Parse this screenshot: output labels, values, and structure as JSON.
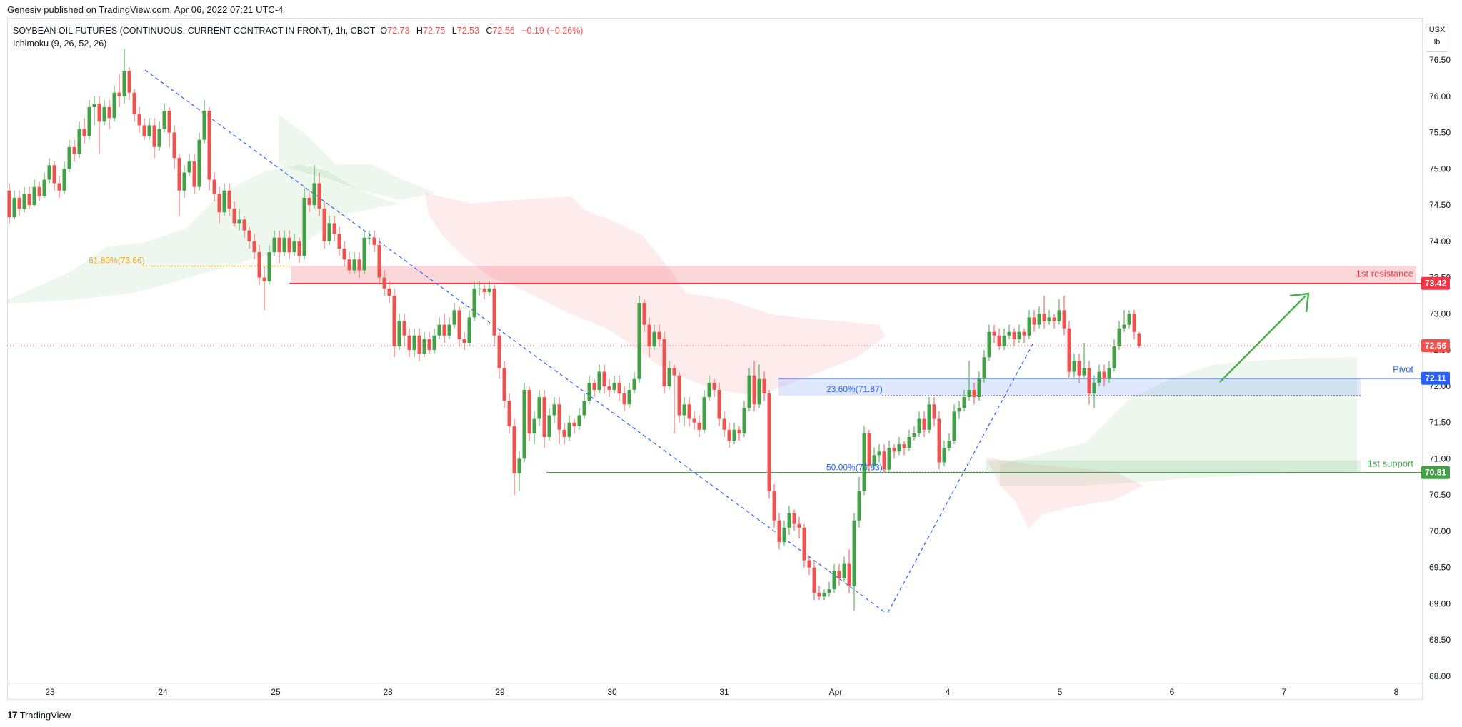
{
  "header": {
    "publisher_line": "Genesiv published on TradingView.com, Apr 06, 2022 07:21 UTC-4"
  },
  "legend": {
    "symbol_line": "SOYBEAN OIL FUTURES (CONTINUOUS: CURRENT CONTRACT IN FRONT), 1h, CBOT",
    "o_label": "O",
    "o_value": "72.73",
    "h_label": "H",
    "h_value": "72.75",
    "l_label": "L",
    "l_value": "72.53",
    "c_label": "C",
    "c_value": "72.56",
    "change": "−0.19 (−0.26%)",
    "indicator": "Ichimoku (9, 26, 52, 26)"
  },
  "unit": {
    "line1": "USX",
    "line2": "lb"
  },
  "footer": {
    "brand": "TradingView"
  },
  "colors": {
    "up": "#26a69a",
    "up_candle": "#43a047",
    "down": "#ef5350",
    "resistance": "#f23645",
    "pivot": "#2962ff",
    "support": "#43a047",
    "fib": "#2962ff",
    "fib618": "#f5a623"
  },
  "chart_data": {
    "type": "candlestick",
    "title": "",
    "ylim": [
      67.8,
      76.9
    ],
    "y_ticks": [
      "76.50",
      "76.00",
      "75.50",
      "75.00",
      "74.50",
      "74.00",
      "73.50",
      "73.00",
      "72.50",
      "72.00",
      "71.50",
      "71.00",
      "70.50",
      "70.00",
      "69.50",
      "69.00",
      "68.50",
      "68.00"
    ],
    "x_ticks": [
      "23",
      "24",
      "25",
      "28",
      "29",
      "30",
      "31",
      "Apr",
      "4",
      "5",
      "6",
      "7",
      "8"
    ],
    "levels": [
      {
        "name": "1st resistance",
        "value": 73.42,
        "label": "73.42",
        "color": "#f23645"
      },
      {
        "name": "Pivot",
        "value": 72.11,
        "label": "72.11",
        "color": "#2962ff"
      },
      {
        "name": "1st support",
        "value": 70.81,
        "label": "70.81",
        "color": "#43a047"
      }
    ],
    "last_price": {
      "value": 72.56,
      "label": "72.56"
    },
    "fib_labels": [
      {
        "text": "61.80%(73.66)",
        "value": 73.66
      },
      {
        "text": "23.60%(71.87)",
        "value": 71.87
      },
      {
        "text": "50.00%(70.83)",
        "value": 70.83
      }
    ],
    "candles": [
      [
        74.7,
        74.33,
        74.8,
        74.25
      ],
      [
        74.33,
        74.6,
        74.7,
        74.3
      ],
      [
        74.6,
        74.45,
        74.7,
        74.35
      ],
      [
        74.45,
        74.65,
        74.75,
        74.4
      ],
      [
        74.65,
        74.5,
        74.75,
        74.45
      ],
      [
        74.5,
        74.75,
        74.85,
        74.48
      ],
      [
        74.75,
        74.62,
        74.82,
        74.55
      ],
      [
        74.62,
        74.85,
        74.95,
        74.6
      ],
      [
        74.85,
        75.05,
        75.15,
        74.8
      ],
      [
        75.05,
        74.8,
        75.1,
        74.7
      ],
      [
        74.8,
        74.7,
        74.9,
        74.6
      ],
      [
        74.7,
        75.0,
        75.1,
        74.65
      ],
      [
        75.0,
        75.3,
        75.4,
        74.95
      ],
      [
        75.3,
        75.2,
        75.4,
        75.1
      ],
      [
        75.2,
        75.55,
        75.65,
        75.15
      ],
      [
        75.55,
        75.45,
        75.7,
        75.35
      ],
      [
        75.45,
        75.85,
        75.95,
        75.4
      ],
      [
        75.85,
        75.9,
        76.0,
        75.6
      ],
      [
        75.9,
        75.65,
        76.0,
        75.2
      ],
      [
        75.65,
        75.85,
        75.95,
        75.6
      ],
      [
        75.85,
        75.7,
        75.95,
        75.55
      ],
      [
        75.7,
        76.05,
        76.15,
        75.65
      ],
      [
        76.05,
        76.0,
        76.3,
        75.85
      ],
      [
        76.0,
        76.35,
        76.65,
        75.9
      ],
      [
        76.35,
        76.05,
        76.4,
        75.95
      ],
      [
        76.05,
        75.75,
        76.1,
        75.65
      ],
      [
        75.75,
        75.6,
        75.85,
        75.5
      ],
      [
        75.6,
        75.45,
        75.7,
        75.4
      ],
      [
        75.45,
        75.6,
        75.7,
        75.4
      ],
      [
        75.6,
        75.3,
        75.7,
        75.15
      ],
      [
        75.3,
        75.55,
        75.65,
        75.25
      ],
      [
        75.55,
        75.8,
        75.9,
        75.5
      ],
      [
        75.8,
        75.5,
        75.85,
        75.3
      ],
      [
        75.5,
        75.15,
        75.6,
        75.0
      ],
      [
        75.15,
        74.7,
        75.2,
        74.35
      ],
      [
        74.7,
        74.95,
        75.05,
        74.6
      ],
      [
        74.95,
        75.1,
        75.2,
        74.9
      ],
      [
        75.1,
        74.75,
        75.2,
        74.65
      ],
      [
        74.75,
        75.4,
        75.5,
        74.7
      ],
      [
        75.4,
        75.8,
        75.95,
        75.35
      ],
      [
        75.8,
        74.85,
        75.85,
        74.7
      ],
      [
        74.85,
        74.65,
        74.95,
        74.55
      ],
      [
        74.65,
        74.4,
        74.75,
        74.25
      ],
      [
        74.4,
        74.7,
        74.8,
        74.35
      ],
      [
        74.7,
        74.45,
        74.8,
        74.35
      ],
      [
        74.45,
        74.25,
        74.55,
        74.2
      ],
      [
        74.25,
        74.3,
        74.45,
        74.15
      ],
      [
        74.3,
        74.15,
        74.35,
        74.05
      ],
      [
        74.15,
        74.0,
        74.2,
        73.9
      ],
      [
        74.0,
        73.85,
        74.1,
        73.75
      ],
      [
        73.85,
        73.5,
        73.95,
        73.4
      ],
      [
        73.5,
        73.45,
        73.65,
        73.05
      ],
      [
        73.45,
        73.85,
        73.95,
        73.4
      ],
      [
        73.85,
        74.05,
        74.15,
        73.8
      ],
      [
        74.05,
        73.85,
        74.15,
        73.7
      ],
      [
        73.85,
        74.05,
        74.15,
        73.8
      ],
      [
        74.05,
        73.85,
        74.15,
        73.75
      ],
      [
        73.85,
        74.0,
        74.1,
        73.8
      ],
      [
        74.0,
        73.8,
        74.05,
        73.7
      ],
      [
        73.8,
        74.6,
        74.75,
        73.75
      ],
      [
        74.6,
        74.5,
        74.7,
        74.4
      ],
      [
        74.5,
        74.8,
        75.05,
        74.45
      ],
      [
        74.8,
        74.45,
        74.95,
        74.35
      ],
      [
        74.45,
        74.0,
        74.55,
        73.9
      ],
      [
        74.0,
        74.25,
        74.35,
        73.95
      ],
      [
        74.25,
        74.1,
        74.35,
        74.0
      ],
      [
        74.1,
        73.9,
        74.2,
        73.8
      ],
      [
        73.9,
        73.75,
        74.0,
        73.65
      ],
      [
        73.75,
        73.6,
        73.85,
        73.55
      ],
      [
        73.6,
        73.75,
        73.85,
        73.55
      ],
      [
        73.75,
        73.6,
        73.85,
        73.5
      ],
      [
        73.6,
        74.05,
        74.15,
        73.55
      ],
      [
        74.05,
        74.05,
        74.15,
        73.95
      ],
      [
        74.05,
        73.95,
        74.15,
        73.85
      ],
      [
        73.95,
        73.5,
        74.05,
        73.4
      ],
      [
        73.5,
        73.35,
        73.6,
        73.25
      ],
      [
        73.35,
        73.25,
        73.45,
        73.15
      ],
      [
        73.25,
        72.55,
        73.35,
        72.4
      ],
      [
        72.55,
        72.9,
        73.0,
        72.5
      ],
      [
        72.9,
        72.7,
        73.0,
        72.55
      ],
      [
        72.7,
        72.5,
        72.8,
        72.4
      ],
      [
        72.5,
        72.7,
        72.8,
        72.4
      ],
      [
        72.7,
        72.45,
        72.8,
        72.35
      ],
      [
        72.45,
        72.65,
        72.75,
        72.4
      ],
      [
        72.65,
        72.5,
        72.75,
        72.45
      ],
      [
        72.5,
        72.7,
        72.8,
        72.45
      ],
      [
        72.7,
        72.85,
        72.95,
        72.65
      ],
      [
        72.85,
        72.7,
        73.0,
        72.6
      ],
      [
        72.7,
        72.85,
        72.95,
        72.65
      ],
      [
        72.85,
        73.05,
        73.15,
        72.8
      ],
      [
        73.05,
        72.65,
        73.1,
        72.55
      ],
      [
        72.65,
        72.6,
        72.75,
        72.5
      ],
      [
        72.6,
        72.95,
        73.05,
        72.55
      ],
      [
        72.95,
        73.35,
        73.45,
        72.9
      ],
      [
        73.35,
        73.35,
        73.45,
        73.25
      ],
      [
        73.35,
        73.3,
        73.4,
        73.2
      ],
      [
        73.3,
        73.35,
        73.45,
        73.25
      ],
      [
        73.35,
        72.7,
        73.4,
        72.55
      ],
      [
        72.7,
        72.25,
        72.75,
        72.1
      ],
      [
        72.25,
        71.8,
        72.35,
        71.7
      ],
      [
        71.8,
        71.45,
        71.9,
        71.35
      ],
      [
        71.45,
        70.8,
        71.55,
        70.5
      ],
      [
        70.8,
        71.0,
        71.1,
        70.55
      ],
      [
        71.0,
        71.95,
        72.05,
        70.95
      ],
      [
        71.95,
        71.35,
        72.0,
        71.25
      ],
      [
        71.35,
        71.55,
        71.65,
        71.2
      ],
      [
        71.55,
        71.85,
        71.95,
        71.45
      ],
      [
        71.85,
        71.3,
        71.95,
        71.15
      ],
      [
        71.3,
        71.6,
        71.7,
        71.25
      ],
      [
        71.6,
        71.75,
        71.85,
        71.5
      ],
      [
        71.75,
        71.4,
        71.85,
        71.2
      ],
      [
        71.4,
        71.3,
        71.5,
        71.2
      ],
      [
        71.3,
        71.5,
        71.6,
        71.25
      ],
      [
        71.5,
        71.45,
        71.55,
        71.35
      ],
      [
        71.45,
        71.6,
        71.7,
        71.4
      ],
      [
        71.6,
        71.8,
        71.9,
        71.55
      ],
      [
        71.8,
        72.05,
        72.15,
        71.75
      ],
      [
        72.05,
        71.95,
        72.1,
        71.85
      ],
      [
        71.95,
        72.2,
        72.3,
        71.9
      ],
      [
        72.2,
        72.0,
        72.3,
        71.9
      ],
      [
        72.0,
        71.95,
        72.1,
        71.85
      ],
      [
        71.95,
        72.05,
        72.15,
        71.9
      ],
      [
        72.05,
        71.9,
        72.15,
        71.8
      ],
      [
        71.9,
        71.75,
        72.0,
        71.65
      ],
      [
        71.75,
        71.95,
        72.05,
        71.7
      ],
      [
        71.95,
        72.1,
        72.2,
        71.9
      ],
      [
        72.1,
        73.15,
        73.25,
        72.05
      ],
      [
        73.15,
        72.85,
        73.2,
        72.75
      ],
      [
        72.85,
        72.55,
        72.95,
        72.4
      ],
      [
        72.55,
        72.75,
        72.85,
        72.5
      ],
      [
        72.75,
        72.65,
        72.85,
        72.55
      ],
      [
        72.65,
        72.0,
        72.75,
        71.9
      ],
      [
        72.0,
        72.25,
        72.35,
        71.95
      ],
      [
        72.25,
        72.15,
        72.3,
        71.35
      ],
      [
        72.15,
        71.6,
        72.2,
        71.5
      ],
      [
        71.6,
        71.75,
        71.85,
        71.45
      ],
      [
        71.75,
        71.55,
        71.85,
        71.45
      ],
      [
        71.55,
        71.5,
        71.65,
        71.4
      ],
      [
        71.5,
        71.4,
        71.6,
        71.3
      ],
      [
        71.4,
        71.85,
        71.95,
        71.35
      ],
      [
        71.85,
        72.05,
        72.15,
        71.8
      ],
      [
        72.05,
        71.95,
        72.1,
        71.85
      ],
      [
        71.95,
        71.55,
        72.05,
        71.45
      ],
      [
        71.55,
        71.4,
        71.65,
        71.3
      ],
      [
        71.4,
        71.25,
        71.5,
        71.15
      ],
      [
        71.25,
        71.4,
        71.5,
        71.2
      ],
      [
        71.4,
        71.35,
        71.45,
        71.25
      ],
      [
        71.35,
        71.7,
        71.8,
        71.3
      ],
      [
        71.7,
        72.15,
        72.25,
        71.65
      ],
      [
        72.15,
        71.75,
        72.35,
        71.65
      ],
      [
        71.75,
        72.1,
        72.3,
        71.7
      ],
      [
        72.1,
        71.9,
        72.2,
        71.8
      ],
      [
        71.9,
        70.55,
        71.95,
        70.45
      ],
      [
        70.55,
        70.15,
        70.65,
        70.05
      ],
      [
        70.15,
        69.85,
        70.25,
        69.75
      ],
      [
        69.85,
        70.05,
        70.15,
        69.8
      ],
      [
        70.05,
        70.25,
        70.35,
        69.95
      ],
      [
        70.25,
        70.1,
        70.3,
        70.0
      ],
      [
        70.1,
        70.05,
        70.2,
        69.9
      ],
      [
        70.05,
        69.6,
        70.1,
        69.5
      ],
      [
        69.6,
        69.5,
        69.65,
        69.4
      ],
      [
        69.5,
        69.15,
        69.6,
        69.05
      ],
      [
        69.15,
        69.1,
        69.25,
        69.05
      ],
      [
        69.1,
        69.15,
        69.2,
        69.05
      ],
      [
        69.15,
        69.2,
        69.3,
        69.1
      ],
      [
        69.2,
        69.45,
        69.55,
        69.15
      ],
      [
        69.45,
        69.35,
        69.55,
        69.25
      ],
      [
        69.35,
        69.55,
        69.65,
        69.3
      ],
      [
        69.55,
        69.25,
        69.75,
        69.15
      ],
      [
        69.25,
        70.15,
        70.25,
        68.9
      ],
      [
        70.15,
        70.55,
        70.75,
        70.05
      ],
      [
        70.55,
        71.35,
        71.45,
        70.5
      ],
      [
        71.35,
        70.9,
        71.4,
        70.8
      ],
      [
        70.9,
        71.05,
        71.15,
        70.85
      ],
      [
        71.05,
        71.1,
        71.2,
        70.95
      ],
      [
        71.1,
        70.85,
        71.2,
        70.8
      ],
      [
        70.85,
        71.15,
        71.25,
        70.8
      ],
      [
        71.15,
        71.1,
        71.2,
        71.0
      ],
      [
        71.1,
        71.2,
        71.3,
        71.05
      ],
      [
        71.2,
        71.15,
        71.25,
        71.05
      ],
      [
        71.15,
        71.3,
        71.4,
        71.1
      ],
      [
        71.3,
        71.35,
        71.45,
        71.25
      ],
      [
        71.35,
        71.55,
        71.65,
        71.3
      ],
      [
        71.55,
        71.4,
        71.65,
        71.3
      ],
      [
        71.4,
        71.75,
        71.85,
        71.35
      ],
      [
        71.75,
        71.55,
        71.85,
        71.45
      ],
      [
        71.55,
        70.95,
        71.65,
        70.85
      ],
      [
        70.95,
        71.15,
        71.25,
        70.9
      ],
      [
        71.15,
        71.25,
        71.35,
        71.1
      ],
      [
        71.25,
        71.65,
        71.75,
        71.2
      ],
      [
        71.65,
        71.7,
        71.8,
        71.55
      ],
      [
        71.7,
        71.85,
        71.95,
        71.65
      ],
      [
        71.85,
        71.95,
        72.35,
        71.8
      ],
      [
        71.95,
        71.85,
        72.05,
        71.75
      ],
      [
        71.85,
        72.1,
        72.2,
        71.8
      ],
      [
        72.1,
        72.4,
        72.5,
        72.05
      ],
      [
        72.4,
        72.75,
        72.85,
        72.35
      ],
      [
        72.75,
        72.7,
        72.85,
        72.6
      ],
      [
        72.7,
        72.55,
        72.8,
        72.5
      ],
      [
        72.55,
        72.7,
        72.8,
        72.5
      ],
      [
        72.7,
        72.75,
        72.85,
        72.65
      ],
      [
        72.75,
        72.65,
        72.8,
        72.55
      ],
      [
        72.65,
        72.75,
        72.85,
        72.6
      ],
      [
        72.75,
        72.7,
        72.8,
        72.6
      ],
      [
        72.7,
        72.95,
        73.05,
        72.65
      ],
      [
        72.95,
        72.85,
        73.05,
        72.75
      ],
      [
        72.85,
        73.0,
        73.1,
        72.8
      ],
      [
        73.0,
        72.9,
        73.25,
        72.8
      ],
      [
        72.9,
        72.95,
        73.05,
        72.85
      ],
      [
        72.95,
        72.9,
        73.0,
        72.8
      ],
      [
        72.9,
        73.05,
        73.2,
        72.85
      ],
      [
        73.05,
        72.8,
        73.25,
        72.7
      ],
      [
        72.8,
        72.2,
        72.9,
        72.1
      ],
      [
        72.2,
        72.35,
        72.45,
        72.1
      ],
      [
        72.35,
        72.15,
        72.45,
        72.05
      ],
      [
        72.15,
        72.25,
        72.6,
        72.1
      ],
      [
        72.25,
        71.9,
        72.35,
        71.75
      ],
      [
        71.9,
        72.05,
        72.15,
        71.7
      ],
      [
        72.05,
        72.2,
        72.3,
        72.0
      ],
      [
        72.2,
        72.1,
        72.3,
        72.0
      ],
      [
        72.1,
        72.25,
        72.35,
        72.05
      ],
      [
        72.25,
        72.55,
        72.65,
        72.2
      ],
      [
        72.55,
        72.8,
        72.9,
        72.5
      ],
      [
        72.8,
        72.85,
        73.05,
        72.75
      ],
      [
        72.85,
        73.0,
        73.05,
        72.8
      ],
      [
        73.0,
        72.75,
        73.05,
        72.65
      ],
      [
        72.73,
        72.56,
        72.75,
        72.53
      ]
    ]
  }
}
